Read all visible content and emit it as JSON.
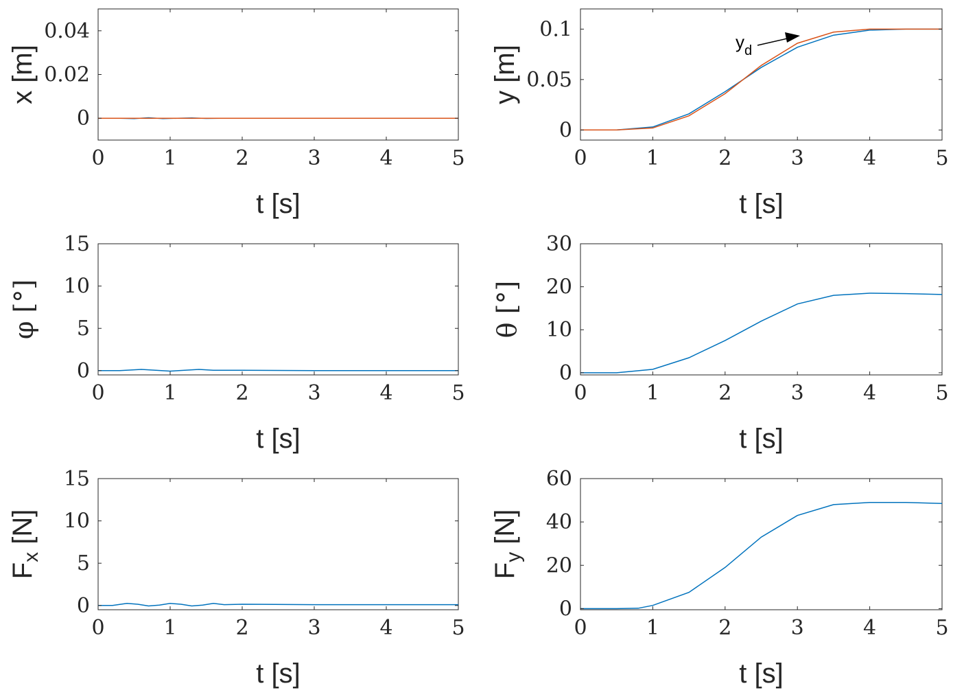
{
  "chart_data": [
    {
      "type": "line",
      "xlabel": "t [s]",
      "ylabel": "x [m]",
      "ylabel_main": "x [m]",
      "xlim": [
        0,
        5
      ],
      "ylim": [
        -0.01,
        0.05
      ],
      "xticks": [
        "0",
        "1",
        "2",
        "3",
        "4",
        "5"
      ],
      "yticks": [
        "0",
        "0.02",
        "0.04"
      ],
      "grid": false,
      "series": [
        {
          "color": "#0072BD",
          "x": [
            0,
            0.3,
            0.5,
            0.7,
            0.9,
            1.1,
            1.3,
            1.5,
            1.7,
            2,
            3,
            4,
            5
          ],
          "y": [
            0,
            0,
            -0.0002,
            0.0002,
            -0.0002,
            0,
            0.0001,
            -0.0001,
            0,
            0,
            0,
            0,
            0
          ]
        },
        {
          "color": "#D95319",
          "x": [
            0,
            5
          ],
          "y": [
            0,
            0
          ]
        }
      ]
    },
    {
      "type": "line",
      "xlabel": "t [s]",
      "ylabel": "y [m]",
      "ylabel_main": "y [m]",
      "xlim": [
        0,
        5
      ],
      "ylim": [
        -0.01,
        0.12
      ],
      "xticks": [
        "0",
        "1",
        "2",
        "3",
        "4",
        "5"
      ],
      "yticks": [
        "0",
        "0.05",
        "0.1"
      ],
      "grid": false,
      "annotation": {
        "text": "y",
        "sub": "d"
      },
      "series": [
        {
          "color": "#0072BD",
          "x": [
            0,
            0.5,
            1,
            1.5,
            2,
            2.5,
            3,
            3.5,
            4,
            4.5,
            5
          ],
          "y": [
            0,
            0,
            0.003,
            0.016,
            0.038,
            0.062,
            0.082,
            0.094,
            0.099,
            0.1,
            0.1
          ]
        },
        {
          "color": "#D95319",
          "x": [
            0,
            0.5,
            1,
            1.5,
            2,
            2.5,
            3,
            3.5,
            4,
            4.5,
            5
          ],
          "y": [
            0,
            0,
            0.002,
            0.014,
            0.036,
            0.064,
            0.086,
            0.097,
            0.1,
            0.1,
            0.1
          ]
        }
      ]
    },
    {
      "type": "line",
      "xlabel": "t [s]",
      "ylabel": "φ  [°]",
      "ylabel_main": "φ  [°]",
      "xlim": [
        0,
        5
      ],
      "ylim": [
        -0.5,
        15
      ],
      "xticks": [
        "0",
        "1",
        "2",
        "3",
        "4",
        "5"
      ],
      "yticks": [
        "0",
        "5",
        "10",
        "15"
      ],
      "grid": false,
      "series": [
        {
          "color": "#0072BD",
          "x": [
            0,
            0.3,
            0.6,
            0.8,
            1,
            1.2,
            1.4,
            1.6,
            2,
            3,
            4,
            5
          ],
          "y": [
            0,
            0,
            0.15,
            0.05,
            -0.05,
            0.05,
            0.15,
            0.05,
            0.05,
            0,
            0,
            0
          ]
        }
      ]
    },
    {
      "type": "line",
      "xlabel": "t [s]",
      "ylabel": "θ [°]",
      "ylabel_main": "θ [°]",
      "xlim": [
        0,
        5
      ],
      "ylim": [
        -0.5,
        30
      ],
      "xticks": [
        "0",
        "1",
        "2",
        "3",
        "4",
        "5"
      ],
      "yticks": [
        "0",
        "10",
        "20",
        "30"
      ],
      "grid": false,
      "series": [
        {
          "color": "#0072BD",
          "x": [
            0,
            0.5,
            1,
            1.5,
            2,
            2.5,
            3,
            3.5,
            4,
            4.5,
            5
          ],
          "y": [
            0,
            0,
            0.8,
            3.5,
            7.5,
            12,
            16,
            18,
            18.5,
            18.4,
            18.2
          ]
        }
      ]
    },
    {
      "type": "line",
      "xlabel": "t [s]",
      "ylabel": "Fx [N]",
      "ylabel_main": "F",
      "ylabel_sub": "x",
      "ylabel_unit": " [N]",
      "xlim": [
        0,
        5
      ],
      "ylim": [
        -0.5,
        15
      ],
      "xticks": [
        "0",
        "1",
        "2",
        "3",
        "4",
        "5"
      ],
      "yticks": [
        "0",
        "5",
        "10",
        "15"
      ],
      "grid": false,
      "series": [
        {
          "color": "#0072BD",
          "x": [
            0,
            0.2,
            0.4,
            0.55,
            0.7,
            0.85,
            1,
            1.15,
            1.3,
            1.45,
            1.6,
            1.75,
            2,
            3,
            4,
            5
          ],
          "y": [
            0,
            0,
            0.25,
            0.15,
            -0.05,
            0.05,
            0.25,
            0.15,
            -0.05,
            0.05,
            0.25,
            0.1,
            0.15,
            0.1,
            0.1,
            0.1
          ]
        }
      ]
    },
    {
      "type": "line",
      "xlabel": "t [s]",
      "ylabel": "Fy [N]",
      "ylabel_main": "F",
      "ylabel_sub": "y",
      "ylabel_unit": " [N]",
      "xlim": [
        0,
        5
      ],
      "ylim": [
        -0.5,
        60
      ],
      "xticks": [
        "0",
        "1",
        "2",
        "3",
        "4",
        "5"
      ],
      "yticks": [
        "0",
        "20",
        "40",
        "60"
      ],
      "grid": false,
      "series": [
        {
          "color": "#0072BD",
          "x": [
            0,
            0.5,
            0.8,
            1,
            1.5,
            2,
            2.5,
            3,
            3.5,
            4,
            4.5,
            5
          ],
          "y": [
            0,
            0,
            0.2,
            1.5,
            7.5,
            19,
            33,
            43,
            48,
            49,
            49,
            48.5
          ]
        }
      ]
    }
  ]
}
